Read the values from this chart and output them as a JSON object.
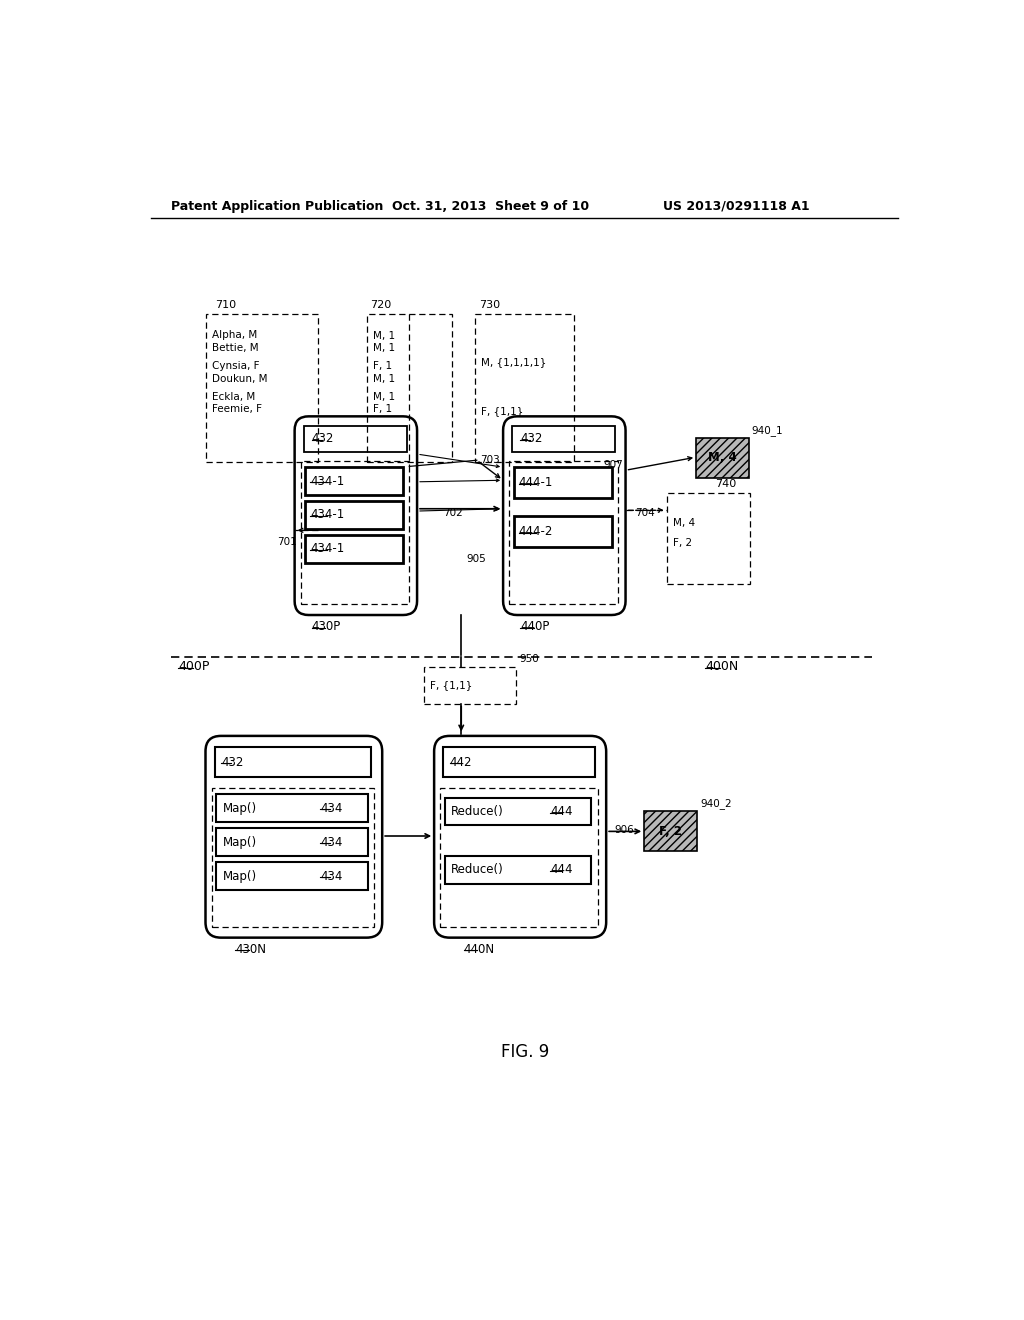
{
  "header_left": "Patent Application Publication",
  "header_mid": "Oct. 31, 2013  Sheet 9 of 10",
  "header_right": "US 2013/0291118 A1",
  "fig_caption": "FIG. 9",
  "bg_color": "#ffffff"
}
